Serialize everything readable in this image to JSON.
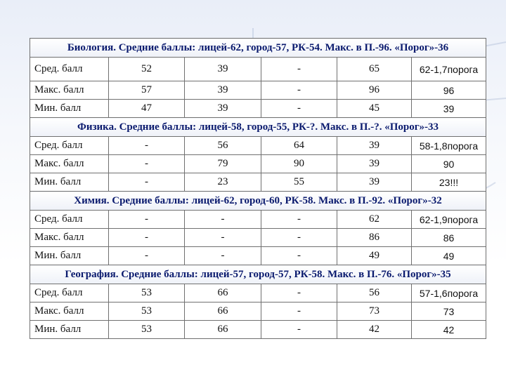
{
  "sections": [
    {
      "title": "Биология. Средние баллы: лицей-62, город-57, РК-54. Макс. в П.-96. «Порог»-36",
      "rows": [
        {
          "label": "Сред. балл",
          "c1": "52",
          "c2": "39",
          "c3": "-",
          "c4": "65",
          "c5": "62-1,7порога"
        },
        {
          "label": "Макс. балл",
          "c1": "57",
          "c2": "39",
          "c3": "-",
          "c4": "96",
          "c5": "96"
        },
        {
          "label": "Мин. балл",
          "c1": "47",
          "c2": "39",
          "c3": "-",
          "c4": "45",
          "c5": "39"
        }
      ]
    },
    {
      "title": "Физика. Средние баллы: лицей-58, город-55, РК-?. Макс. в П.-?. «Порог»-33",
      "rows": [
        {
          "label": "Сред. балл",
          "c1": "-",
          "c2": "56",
          "c3": "64",
          "c4": "39",
          "c5": "58-1,8порога"
        },
        {
          "label": "Макс. балл",
          "c1": "-",
          "c2": "79",
          "c3": "90",
          "c4": "39",
          "c5": "90"
        },
        {
          "label": "Мин. балл",
          "c1": "-",
          "c2": "23",
          "c3": "55",
          "c4": "39",
          "c5": "23!!!"
        }
      ]
    },
    {
      "title": "Химия. Средние баллы: лицей-62, город-60, РК-58. Макс. в П.-92. «Порог»-32",
      "rows": [
        {
          "label": "Сред. балл",
          "c1": "-",
          "c2": "-",
          "c3": "-",
          "c4": "62",
          "c5": "62-1,9порога"
        },
        {
          "label": "Макс. балл",
          "c1": "-",
          "c2": "-",
          "c3": "-",
          "c4": "86",
          "c5": "86"
        },
        {
          "label": "Мин. балл",
          "c1": "-",
          "c2": "-",
          "c3": "-",
          "c4": "49",
          "c5": "49"
        }
      ]
    },
    {
      "title": "География. Средние баллы: лицей-57, город-57, РК-58. Макс. в П.-76. «Порог»-35",
      "rows": [
        {
          "label": "Сред. балл",
          "c1": "53",
          "c2": "66",
          "c3": "-",
          "c4": "56",
          "c5": "57-1,6порога"
        },
        {
          "label": "Макс. балл",
          "c1": "53",
          "c2": "66",
          "c3": "-",
          "c4": "73",
          "c5": "73"
        },
        {
          "label": "Мин. балл",
          "c1": "53",
          "c2": "66",
          "c3": "-",
          "c4": "42",
          "c5": "42"
        }
      ]
    }
  ]
}
